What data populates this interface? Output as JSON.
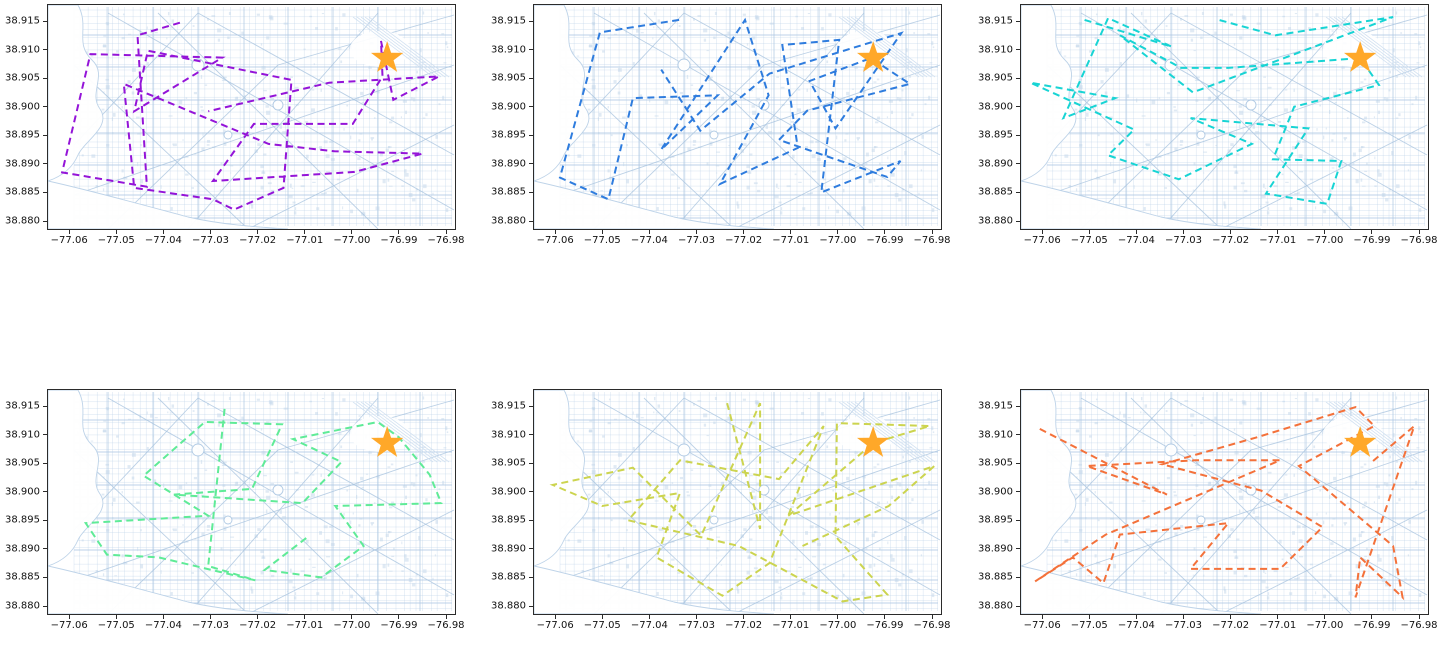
{
  "figure": {
    "background": "#ffffff",
    "rows": 2,
    "cols": 3,
    "title": ""
  },
  "chart_data": {
    "type": "line",
    "title": "",
    "xlabel": "",
    "ylabel": "",
    "grid": false,
    "legend": "none",
    "x_tick_labels": [
      "−77.06",
      "−77.05",
      "−77.04",
      "−77.03",
      "−77.02",
      "−77.01",
      "−77.00",
      "−76.99",
      "−76.98"
    ],
    "x_tick_values": [
      -77.06,
      -77.05,
      -77.04,
      -77.03,
      -77.02,
      -77.01,
      -77.0,
      -76.99,
      -76.98
    ],
    "y_tick_labels": [
      "38.915",
      "38.910",
      "38.905",
      "38.900",
      "38.895",
      "38.890",
      "38.885",
      "38.880"
    ],
    "y_tick_values": [
      38.915,
      38.91,
      38.905,
      38.9,
      38.895,
      38.89,
      38.885,
      38.88
    ],
    "xlim": [
      -77.0645,
      -76.9781
    ],
    "ylim": [
      38.8786,
      38.9178
    ],
    "basemap": {
      "street_color": "#b9cfe6",
      "avenue_color": "#a6c2de",
      "water_fill": "#ffffff",
      "shore_color": "#bcd2e8",
      "block_fill": "#c2d5ea"
    },
    "star_marker": {
      "lon": -76.9925,
      "lat": 38.9085,
      "color": "#FFA829",
      "shape": "star-5-point"
    },
    "line_style": {
      "dash": [
        7,
        4.5
      ],
      "width": 2,
      "linestyle": "dashed"
    },
    "subplots": [
      {
        "name": "route-purple",
        "row": 1,
        "col": 1,
        "color": "#9414D8",
        "color_name": "purple",
        "path": [
          [
            -77.0365,
            38.9147
          ],
          [
            -77.0455,
            38.9125
          ],
          [
            -77.0435,
            38.886
          ],
          [
            -77.0615,
            38.8885
          ],
          [
            -77.0555,
            38.9092
          ],
          [
            -77.0275,
            38.9086
          ],
          [
            -77.0462,
            38.8992
          ],
          [
            -77.0433,
            38.9098
          ],
          [
            -77.0128,
            38.9047
          ],
          [
            -77.0145,
            38.8858
          ],
          [
            -77.025,
            38.882
          ],
          [
            -77.0295,
            38.8838
          ],
          [
            -77.0462,
            38.8858
          ],
          [
            -77.0484,
            38.904
          ],
          [
            -77.0177,
            38.8935
          ],
          [
            -77.0037,
            38.8922
          ],
          [
            -76.985,
            38.8918
          ],
          [
            -76.9994,
            38.8886
          ],
          [
            -77.0295,
            38.887
          ],
          [
            -77.0208,
            38.897
          ],
          [
            -76.9998,
            38.897
          ],
          [
            -76.9935,
            38.9053
          ],
          [
            -76.9938,
            38.9115
          ],
          [
            -76.9912,
            38.9012
          ],
          [
            -76.9815,
            38.9053
          ],
          [
            -77.0048,
            38.9042
          ],
          [
            -77.0305,
            38.8992
          ]
        ]
      },
      {
        "name": "route-blue",
        "row": 1,
        "col": 2,
        "color": "#2E7CDE",
        "color_name": "blue",
        "path": [
          [
            -77.0337,
            38.9152
          ],
          [
            -77.0505,
            38.913
          ],
          [
            -77.059,
            38.8876
          ],
          [
            -77.0487,
            38.8838
          ],
          [
            -77.0435,
            38.9015
          ],
          [
            -77.0255,
            38.902
          ],
          [
            -77.0375,
            38.8925
          ],
          [
            -77.0197,
            38.9152
          ],
          [
            -77.0147,
            38.902
          ],
          [
            -77.025,
            38.8865
          ],
          [
            -77.0085,
            38.8928
          ],
          [
            -77.0118,
            38.9108
          ],
          [
            -76.9997,
            38.9117
          ],
          [
            -77.0035,
            38.885
          ],
          [
            -76.9867,
            38.8905
          ],
          [
            -76.9895,
            38.8877
          ],
          [
            -77.0125,
            38.8942
          ],
          [
            -77.0065,
            38.8993
          ],
          [
            -76.9847,
            38.904
          ],
          [
            -76.993,
            38.9085
          ],
          [
            -77.006,
            38.9045
          ],
          [
            -77.0005,
            38.8962
          ],
          [
            -76.9865,
            38.9129
          ],
          [
            -77.0145,
            38.9058
          ],
          [
            -77.0292,
            38.8958
          ],
          [
            -77.0375,
            38.9065
          ]
        ]
      },
      {
        "name": "route-cyan",
        "row": 1,
        "col": 3,
        "color": "#17D4D4",
        "color_name": "cyan",
        "path": [
          [
            -77.051,
            38.9152
          ],
          [
            -77.0325,
            38.9105
          ],
          [
            -77.046,
            38.9155
          ],
          [
            -77.0555,
            38.898
          ],
          [
            -77.0445,
            38.9015
          ],
          [
            -77.0625,
            38.9042
          ],
          [
            -77.0405,
            38.896
          ],
          [
            -77.046,
            38.8915
          ],
          [
            -77.031,
            38.8873
          ],
          [
            -77.0155,
            38.8935
          ],
          [
            -77.0285,
            38.898
          ],
          [
            -77.0035,
            38.8962
          ],
          [
            -77.0125,
            38.8848
          ],
          [
            -76.9995,
            38.883
          ],
          [
            -76.9965,
            38.8905
          ],
          [
            -77.011,
            38.8908
          ],
          [
            -77.0065,
            38.9
          ],
          [
            -76.9885,
            38.9038
          ],
          [
            -76.9925,
            38.9085
          ],
          [
            -77.0205,
            38.9068
          ],
          [
            -77.0305,
            38.9068
          ],
          [
            -77.0435,
            38.9125
          ],
          [
            -77.028,
            38.9025
          ],
          [
            -76.9855,
            38.9157
          ],
          [
            -77.0105,
            38.9125
          ],
          [
            -77.0225,
            38.9152
          ]
        ]
      },
      {
        "name": "route-green",
        "row": 2,
        "col": 1,
        "color": "#5FEB97",
        "color_name": "light-green",
        "path": [
          [
            -77.027,
            38.9145
          ],
          [
            -77.0305,
            38.887
          ],
          [
            -77.0205,
            38.8845
          ],
          [
            -77.041,
            38.8885
          ],
          [
            -77.052,
            38.889
          ],
          [
            -77.0565,
            38.8945
          ],
          [
            -77.0305,
            38.8958
          ],
          [
            -77.0442,
            38.9028
          ],
          [
            -77.0312,
            38.9122
          ],
          [
            -77.0148,
            38.9118
          ],
          [
            -77.0212,
            38.9005
          ],
          [
            -77.0378,
            38.8995
          ],
          [
            -77.0105,
            38.898
          ],
          [
            -77.0022,
            38.9052
          ],
          [
            -77.0125,
            38.9092
          ],
          [
            -76.9945,
            38.9122
          ],
          [
            -76.99,
            38.9095
          ],
          [
            -76.9835,
            38.903
          ],
          [
            -76.981,
            38.898
          ],
          [
            -77.0035,
            38.8975
          ],
          [
            -76.9975,
            38.8905
          ],
          [
            -77.0065,
            38.885
          ],
          [
            -77.0185,
            38.8863
          ],
          [
            -77.0092,
            38.8922
          ]
        ]
      },
      {
        "name": "route-yellow",
        "row": 2,
        "col": 2,
        "color": "#CCD44F",
        "color_name": "yellow-green",
        "path": [
          [
            -77.0235,
            38.9155
          ],
          [
            -77.0165,
            38.8935
          ],
          [
            -77.0165,
            38.9155
          ],
          [
            -77.029,
            38.8923
          ],
          [
            -77.0435,
            38.9042
          ],
          [
            -77.0605,
            38.9012
          ],
          [
            -77.05,
            38.8975
          ],
          [
            -77.0335,
            38.8998
          ],
          [
            -77.0385,
            38.8885
          ],
          [
            -77.0245,
            38.8818
          ],
          [
            -77.0145,
            38.8875
          ],
          [
            -77.003,
            38.9115
          ],
          [
            -77.0125,
            38.9022
          ],
          [
            -77.0335,
            38.9055
          ],
          [
            -77.0445,
            38.895
          ],
          [
            -77.021,
            38.8905
          ],
          [
            -76.999,
            38.8808
          ],
          [
            -76.9895,
            38.882
          ],
          [
            -77.0005,
            38.8922
          ],
          [
            -77.0002,
            38.912
          ],
          [
            -76.9805,
            38.9115
          ],
          [
            -76.9925,
            38.9085
          ],
          [
            -77.0105,
            38.8958
          ],
          [
            -76.9795,
            38.9045
          ],
          [
            -76.9892,
            38.8975
          ],
          [
            -77.0075,
            38.8905
          ]
        ]
      },
      {
        "name": "route-orange",
        "row": 2,
        "col": 3,
        "color": "#F4713A",
        "color_name": "coral-orange",
        "path": [
          [
            -77.0605,
            38.911
          ],
          [
            -77.0335,
            38.8995
          ],
          [
            -77.0505,
            38.9045
          ],
          [
            -77.0275,
            38.9055
          ],
          [
            -77.0095,
            38.9055
          ],
          [
            -77.0465,
            38.8925
          ],
          [
            -77.0615,
            38.8843
          ],
          [
            -77.0535,
            38.8885
          ],
          [
            -77.047,
            38.884
          ],
          [
            -77.0435,
            38.8925
          ],
          [
            -77.0205,
            38.8945
          ],
          [
            -77.0285,
            38.8865
          ],
          [
            -77.0095,
            38.8865
          ],
          [
            -77.0005,
            38.8938
          ],
          [
            -77.0135,
            38.9002
          ],
          [
            -77.0345,
            38.9048
          ],
          [
            -77.0145,
            38.9095
          ],
          [
            -76.9935,
            38.9148
          ],
          [
            -76.9895,
            38.9115
          ],
          [
            -77.0055,
            38.9045
          ],
          [
            -76.9855,
            38.8905
          ],
          [
            -76.9835,
            38.8815
          ],
          [
            -76.9925,
            38.8885
          ],
          [
            -76.9935,
            38.8815
          ],
          [
            -76.981,
            38.9115
          ],
          [
            -76.99,
            38.9052
          ]
        ]
      }
    ]
  }
}
